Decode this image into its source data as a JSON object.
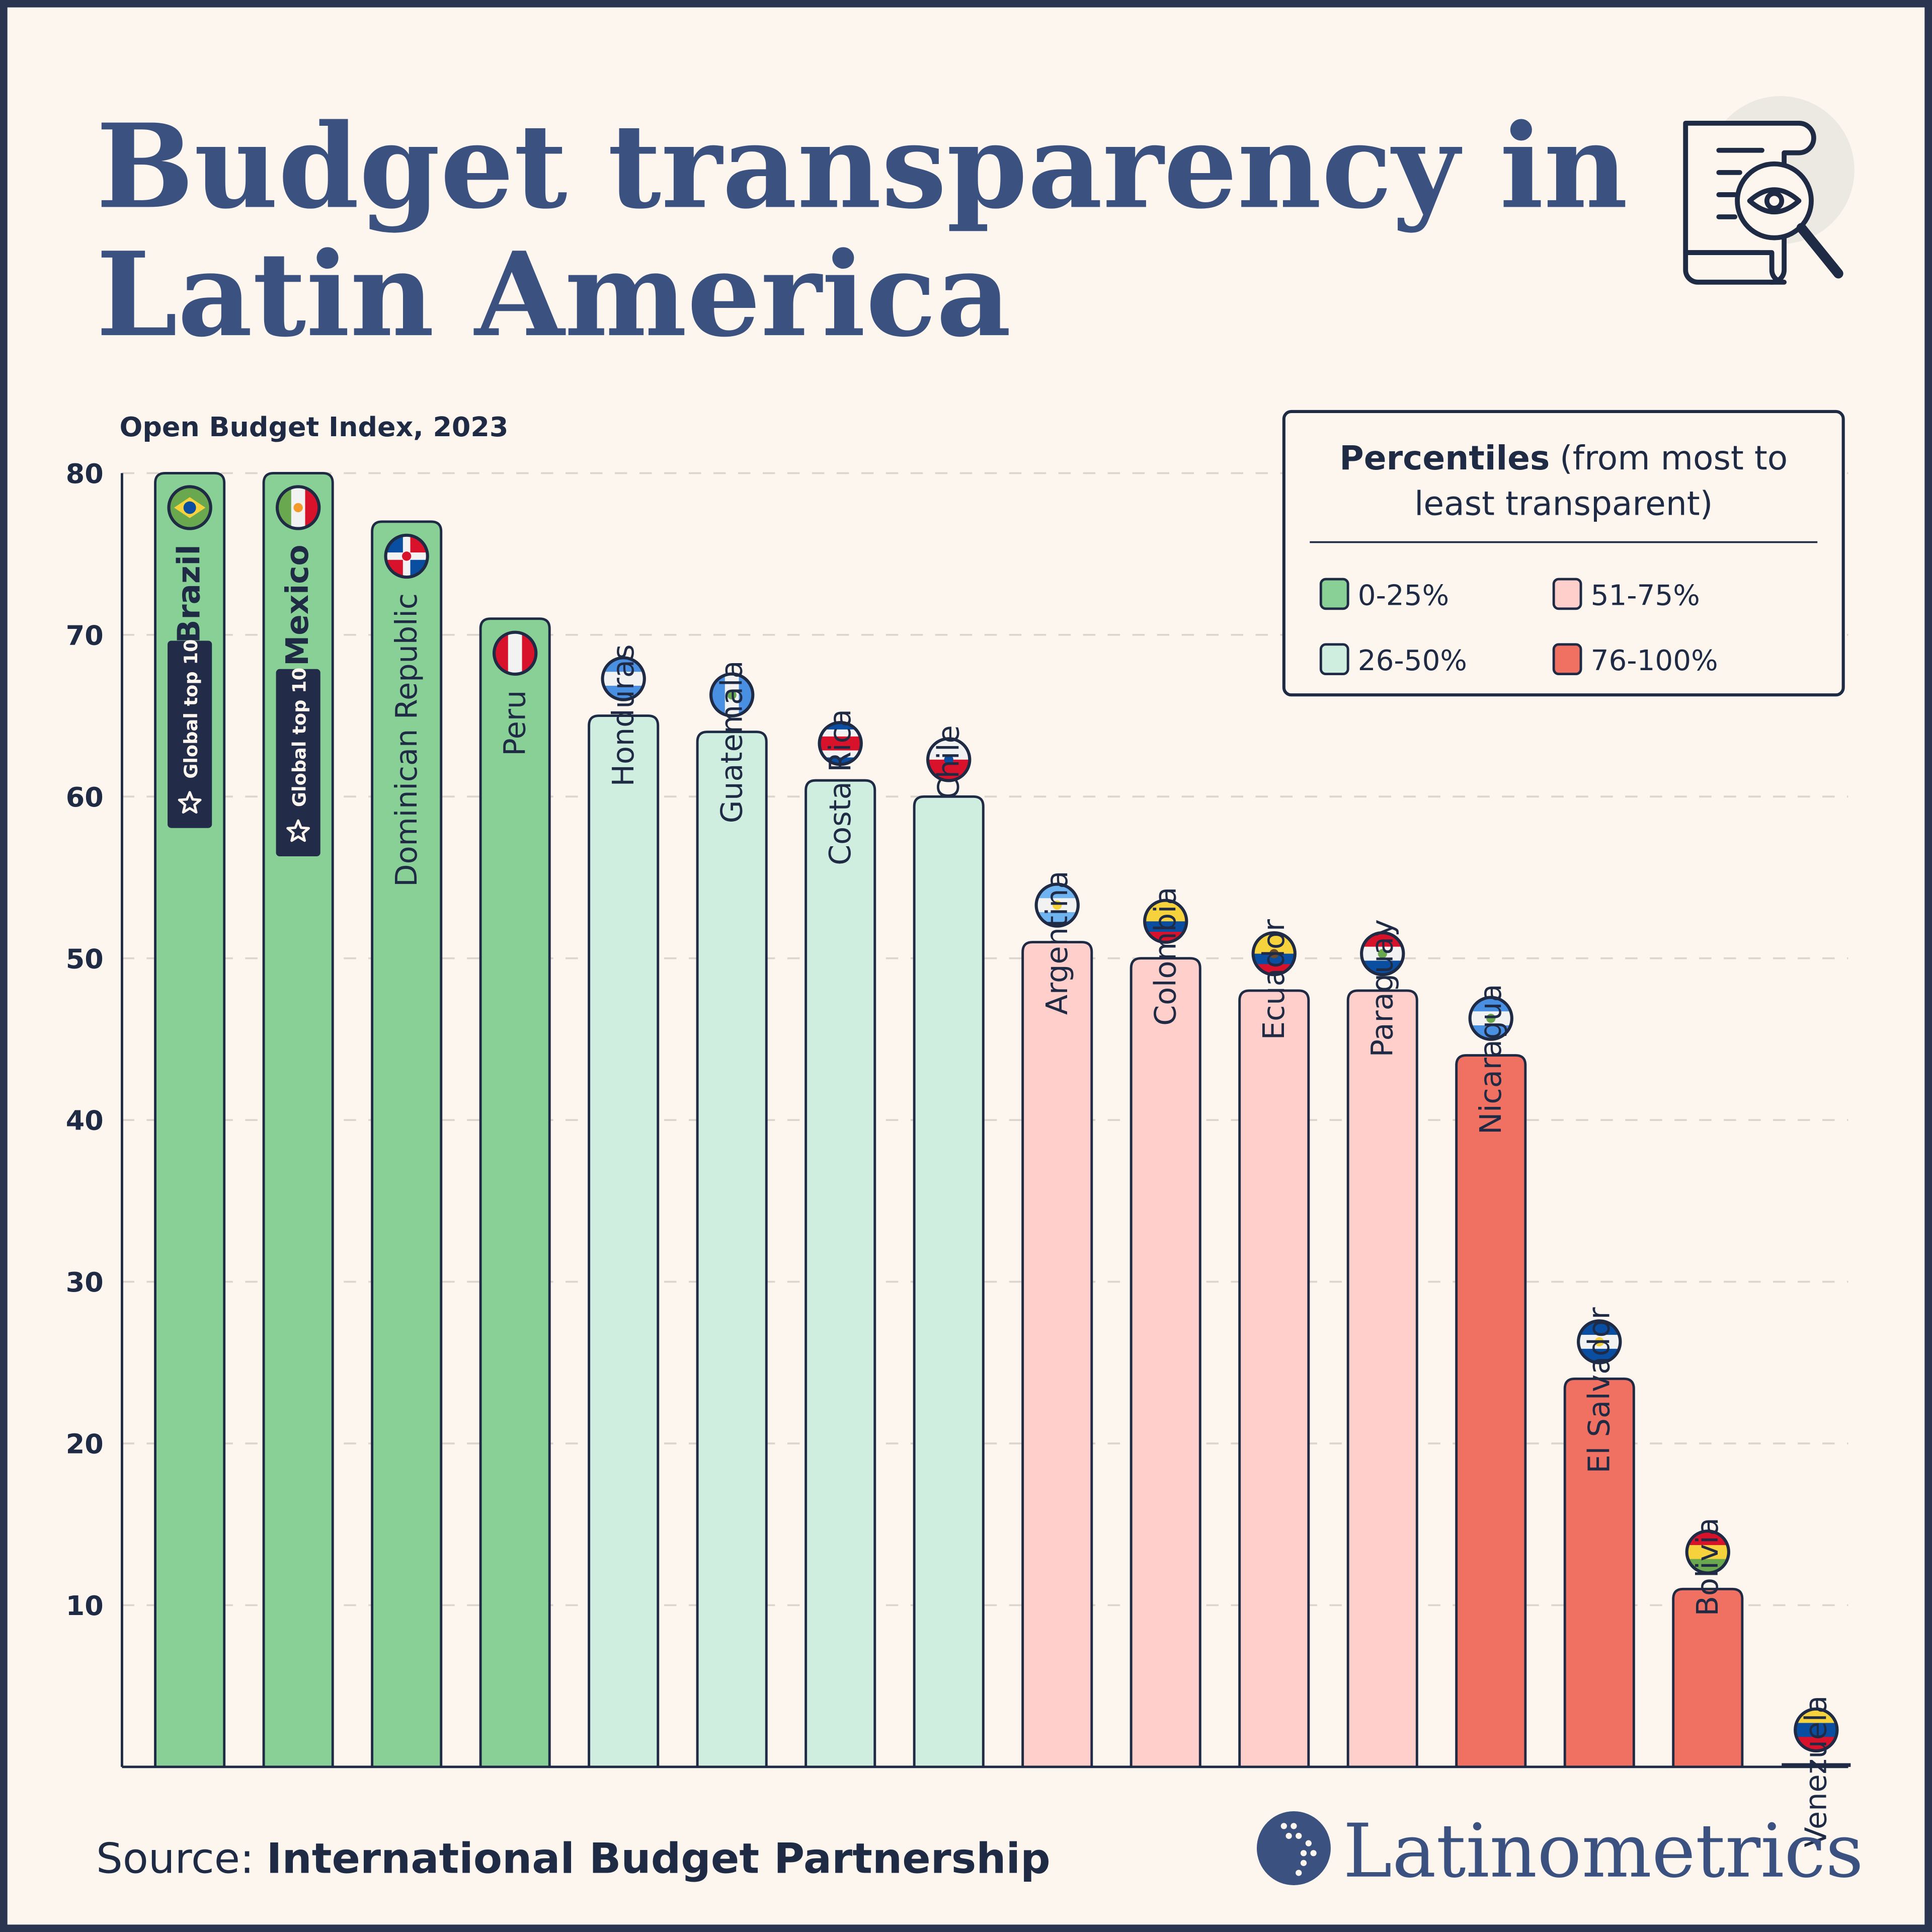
{
  "title_line1": "Budget transparency in",
  "title_line2": "Latin America",
  "subtitle": "Open Budget Index, 2023",
  "source_label": "Source:",
  "source_value": "International Budget Partnership",
  "brand": "Latinometrics",
  "icons": {
    "header": "document-magnifier-eye-icon",
    "brand": "latin-america-map-logo-icon",
    "badge": "star-icon"
  },
  "colors": {
    "text": "#1f2a44",
    "title": "#3b5180",
    "background": "#fdf6ee",
    "0-25%": "#88d095",
    "26-50%": "#cfeee0",
    "51-75%": "#fecfcb",
    "76-100%": "#f07062"
  },
  "legend": {
    "title_bold": "Percentiles",
    "title_rest_line1": "(from most to",
    "title_line2": "least transparent)",
    "items": [
      {
        "label": "0-25%",
        "color": "#88d095"
      },
      {
        "label": "51-75%",
        "color": "#fecfcb"
      },
      {
        "label": "26-50%",
        "color": "#cfeee0"
      },
      {
        "label": "76-100%",
        "color": "#f07062"
      }
    ]
  },
  "chart_data": {
    "type": "bar",
    "title": "Budget transparency in Latin America",
    "ylabel": "Open Budget Index, 2023",
    "ylim": [
      0,
      80
    ],
    "yticks": [
      10,
      20,
      30,
      40,
      50,
      60,
      70,
      80
    ],
    "grid": true,
    "legend_placement": "top-right",
    "categories": [
      "Brazil",
      "Mexico",
      "Dominican Republic",
      "Peru",
      "Honduras",
      "Guatemala",
      "Costa Rica",
      "Chile",
      "Argentina",
      "Colombia",
      "Ecuador",
      "Paraguay",
      "Nicaragua",
      "El Salvador",
      "Bolivia",
      "Venezuela"
    ],
    "values": [
      80,
      80,
      77,
      71,
      65,
      64,
      61,
      60,
      51,
      50,
      48,
      48,
      44,
      24,
      11,
      0
    ],
    "percentile_group": [
      "0-25%",
      "0-25%",
      "0-25%",
      "0-25%",
      "26-50%",
      "26-50%",
      "26-50%",
      "26-50%",
      "51-75%",
      "51-75%",
      "51-75%",
      "51-75%",
      "76-100%",
      "76-100%",
      "76-100%",
      "76-100%"
    ],
    "annotations": [
      {
        "country": "Brazil",
        "text": "Global top 10"
      },
      {
        "country": "Mexico",
        "text": "Global top 10"
      }
    ]
  },
  "flags": {
    "Brazil": {
      "dir": "h",
      "stripes": [
        "#6aa84f"
      ],
      "mark": "#f6d23c"
    },
    "Mexico": {
      "dir": "v",
      "stripes": [
        "#6aa84f",
        "#f2f2f2",
        "#d9122b"
      ],
      "mark": "#f39a2b"
    },
    "Dominican Republic": {
      "dir": "q",
      "stripes": [
        "#0a4ea2",
        "#f2f2f2",
        "#d9122b"
      ],
      "mark": "#d9122b"
    },
    "Peru": {
      "dir": "v",
      "stripes": [
        "#d9122b",
        "#f2f2f2",
        "#d9122b"
      ],
      "mark": ""
    },
    "Honduras": {
      "dir": "h",
      "stripes": [
        "#4a90e2",
        "#f2f2f2",
        "#4a90e2"
      ],
      "mark": ""
    },
    "Guatemala": {
      "dir": "v",
      "stripes": [
        "#4a90e2",
        "#f2f2f2",
        "#4a90e2"
      ],
      "mark": "#6aa84f"
    },
    "Costa Rica": {
      "dir": "h",
      "stripes": [
        "#0a4ea2",
        "#f2f2f2",
        "#d9122b",
        "#d9122b",
        "#f2f2f2",
        "#0a4ea2"
      ],
      "mark": ""
    },
    "Chile": {
      "dir": "h",
      "stripes": [
        "#f2f2f2",
        "#d9122b"
      ],
      "mark": "#0a4ea2"
    },
    "Argentina": {
      "dir": "h",
      "stripes": [
        "#6fb3f0",
        "#f2f2f2",
        "#6fb3f0"
      ],
      "mark": "#f6d23c"
    },
    "Colombia": {
      "dir": "h",
      "stripes": [
        "#f6d23c",
        "#f6d23c",
        "#0a4ea2",
        "#d9122b"
      ],
      "mark": ""
    },
    "Ecuador": {
      "dir": "h",
      "stripes": [
        "#f6d23c",
        "#f6d23c",
        "#0a4ea2",
        "#d9122b"
      ],
      "mark": "#6a4a2a"
    },
    "Paraguay": {
      "dir": "h",
      "stripes": [
        "#d9122b",
        "#f2f2f2",
        "#0a4ea2"
      ],
      "mark": "#6aa84f"
    },
    "Nicaragua": {
      "dir": "h",
      "stripes": [
        "#4a90e2",
        "#f2f2f2",
        "#4a90e2"
      ],
      "mark": "#6aa84f"
    },
    "El Salvador": {
      "dir": "h",
      "stripes": [
        "#0a4ea2",
        "#f2f2f2",
        "#0a4ea2"
      ],
      "mark": "#f6d23c"
    },
    "Bolivia": {
      "dir": "h",
      "stripes": [
        "#d9122b",
        "#f6d23c",
        "#6aa84f"
      ],
      "mark": ""
    },
    "Venezuela": {
      "dir": "h",
      "stripes": [
        "#f6d23c",
        "#0a4ea2",
        "#d9122b"
      ],
      "mark": ""
    }
  }
}
